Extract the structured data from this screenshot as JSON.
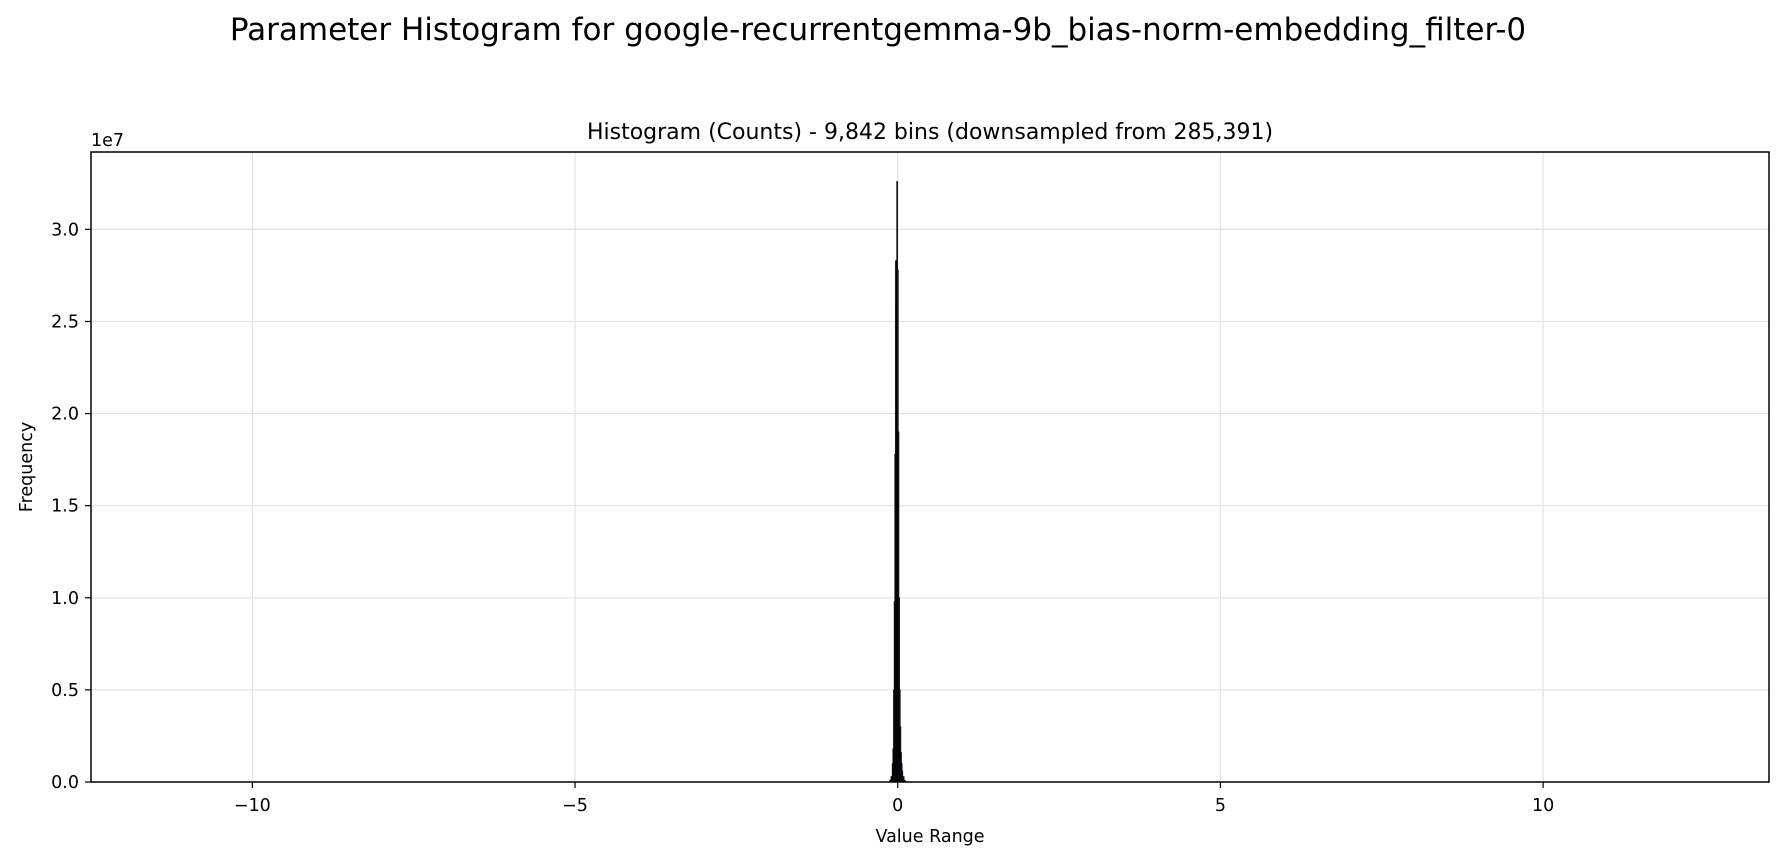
{
  "figure": {
    "suptitle": "Parameter Histogram for google-recurrentgemma-9b_bias-norm-embedding_filter-0"
  },
  "chart_data": {
    "type": "bar",
    "title": "Histogram (Counts) - 9,842 bins (downsampled from 285,391)",
    "xlabel": "Value Range",
    "ylabel": "Frequency",
    "y_offset_label": "1e7",
    "xlim": [
      -12.5,
      13.5
    ],
    "ylim": [
      0,
      3.42
    ],
    "y_scale": 10000000,
    "x_ticks": [
      -10,
      -5,
      0,
      5,
      10
    ],
    "x_tick_labels": [
      "−10",
      "−5",
      "0",
      "5",
      "10"
    ],
    "y_ticks": [
      0.0,
      0.5,
      1.0,
      1.5,
      2.0,
      2.5,
      3.0
    ],
    "y_tick_labels": [
      "0.0",
      "0.5",
      "1.0",
      "1.5",
      "2.0",
      "2.5",
      "3.0"
    ],
    "grid": true,
    "bar_color": "#1f1f3a",
    "edge_color": "#000000",
    "series": [
      {
        "name": "counts",
        "bins": [
          {
            "x": -0.12,
            "value": 0.01
          },
          {
            "x": -0.1,
            "value": 0.03
          },
          {
            "x": -0.08,
            "value": 0.1
          },
          {
            "x": -0.07,
            "value": 0.18
          },
          {
            "x": -0.06,
            "value": 0.5
          },
          {
            "x": -0.05,
            "value": 0.98
          },
          {
            "x": -0.04,
            "value": 1.78
          },
          {
            "x": -0.03,
            "value": 2.83
          },
          {
            "x": -0.02,
            "value": 2.6
          },
          {
            "x": -0.01,
            "value": 3.26
          },
          {
            "x": 0.0,
            "value": 2.78
          },
          {
            "x": 0.01,
            "value": 1.9
          },
          {
            "x": 0.02,
            "value": 1.0
          },
          {
            "x": 0.03,
            "value": 0.5
          },
          {
            "x": 0.04,
            "value": 0.3
          },
          {
            "x": 0.05,
            "value": 0.16
          },
          {
            "x": 0.06,
            "value": 0.1
          },
          {
            "x": 0.07,
            "value": 0.06
          },
          {
            "x": 0.09,
            "value": 0.03
          },
          {
            "x": 0.11,
            "value": 0.01
          }
        ],
        "bin_width": 0.0125
      }
    ]
  }
}
